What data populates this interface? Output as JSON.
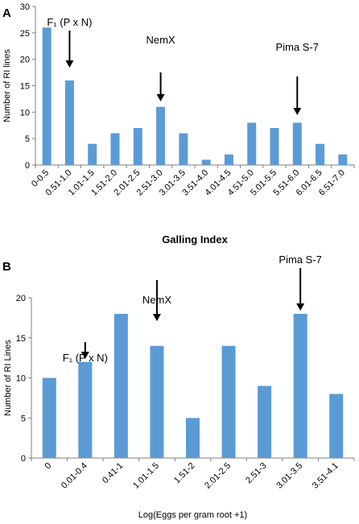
{
  "chart_data": [
    {
      "panel_label": "A",
      "type": "bar",
      "title": "",
      "xlabel": "Galling Index",
      "ylabel": "Number of RI lines",
      "ylim": [
        0,
        30
      ],
      "yticks": [
        0,
        5,
        10,
        15,
        20,
        25,
        30
      ],
      "grid": false,
      "legend": "none",
      "bar_color": "#5B9BD5",
      "categories": [
        "0-0.5",
        "0.51-1.0",
        "1.01-1.5",
        "1.51-2.0",
        "2.01-2.5",
        "2.51-3.0",
        "3.01-3.5",
        "3.51-4.0",
        "4.01-4.5",
        "4.51-5.0",
        "5.01-5.5",
        "5.51-6.0",
        "6.01-6.5",
        "6.51-7.0"
      ],
      "values": [
        26,
        16,
        4,
        6,
        7,
        11,
        6,
        1,
        2,
        8,
        7,
        8,
        4,
        2
      ],
      "annotations": [
        {
          "text": "F₁ (P x N)",
          "category_index": 1
        },
        {
          "text": "NemX",
          "category_index": 5
        },
        {
          "text": "Pima S-7",
          "category_index": 11
        }
      ]
    },
    {
      "panel_label": "B",
      "type": "bar",
      "title": "",
      "xlabel": "Log(Eggs per gram root +1)",
      "ylabel": "Number of RI Lines",
      "ylim": [
        0,
        20
      ],
      "yticks": [
        0,
        5,
        10,
        15,
        20
      ],
      "grid": false,
      "legend": "none",
      "bar_color": "#5B9BD5",
      "categories": [
        "0",
        "0.01-0.4",
        "0.41-1",
        "1.01-1.5",
        "1.51-2",
        "2.01-2.5",
        "2.51-3",
        "3.01-3.5",
        "3.51-4.1"
      ],
      "values": [
        10,
        12,
        18,
        14,
        5,
        14,
        9,
        18,
        8
      ],
      "annotations": [
        {
          "text": "F₁ (P x N)",
          "category_index": 1
        },
        {
          "text": "NemX",
          "category_index": 3
        },
        {
          "text": "Pima S-7",
          "category_index": 7
        }
      ]
    }
  ]
}
